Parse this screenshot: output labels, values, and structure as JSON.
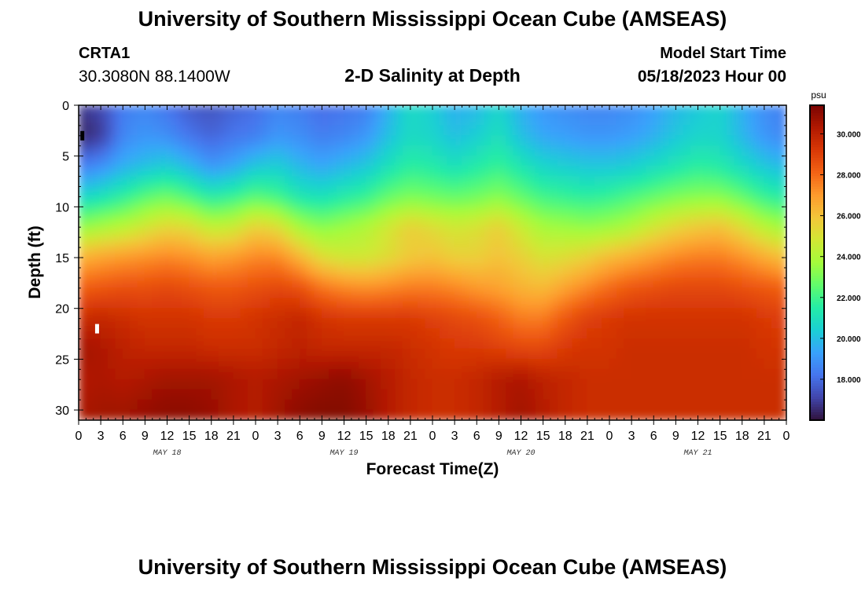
{
  "header": {
    "title": "University of Southern Mississippi Ocean Cube (AMSEAS)",
    "station_id": "CRTA1",
    "station_coords": "30.3080N  88.1400W",
    "chart_title": "2-D Salinity at Depth",
    "model_start_label": "Model Start Time",
    "model_start_value": "05/18/2023 Hour 00"
  },
  "footer": {
    "title": "University of Southern Mississippi Ocean Cube (AMSEAS)"
  },
  "colors": {
    "colormap": [
      "#30123b",
      "#4145ab",
      "#4675ed",
      "#39a2fc",
      "#1bcfd4",
      "#24eca6",
      "#61fc6c",
      "#a4fc3b",
      "#d1e834",
      "#f3c63a",
      "#fe9b2d",
      "#f36315",
      "#d93806",
      "#b11901",
      "#7a0402"
    ],
    "frame": "#000000"
  },
  "chart_data": {
    "type": "heatmap",
    "title": "2-D Salinity at Depth",
    "xlabel": "Forecast Time(Z)",
    "ylabel": "Depth (ft)",
    "x_unit": "hours since 05/18/2023 00Z",
    "xlim": [
      0,
      96
    ],
    "ylim": [
      0,
      31
    ],
    "x_tick_values": [
      0,
      3,
      6,
      9,
      12,
      15,
      18,
      21,
      24,
      27,
      30,
      33,
      36,
      39,
      42,
      45,
      48,
      51,
      54,
      57,
      60,
      63,
      66,
      69,
      72,
      75,
      78,
      81,
      84,
      87,
      90,
      93,
      96
    ],
    "x_tick_labels": [
      "0",
      "3",
      "6",
      "9",
      "12",
      "15",
      "18",
      "21",
      "0",
      "3",
      "6",
      "9",
      "12",
      "15",
      "18",
      "21",
      "0",
      "3",
      "6",
      "9",
      "12",
      "15",
      "18",
      "21",
      "0",
      "3",
      "6",
      "9",
      "12",
      "15",
      "18",
      "21",
      "0"
    ],
    "day_labels": [
      {
        "text": "MAY 18",
        "hour": 12
      },
      {
        "text": "MAY 19",
        "hour": 36
      },
      {
        "text": "MAY 20",
        "hour": 60
      },
      {
        "text": "MAY 21",
        "hour": 84
      }
    ],
    "y_tick_values": [
      0,
      5,
      10,
      15,
      20,
      25,
      30
    ],
    "y_tick_labels": [
      "0",
      "5",
      "10",
      "15",
      "20",
      "25",
      "30"
    ],
    "depth_levels_ft": [
      0,
      3,
      6,
      9,
      12,
      15,
      18,
      21,
      24,
      27,
      30,
      31
    ],
    "time_hours": [
      0,
      3,
      6,
      9,
      12,
      15,
      18,
      21,
      24,
      27,
      30,
      33,
      36,
      39,
      42,
      45,
      48,
      51,
      54,
      57,
      60,
      63,
      66,
      69,
      72,
      75,
      78,
      81,
      84,
      87,
      90,
      93,
      96
    ],
    "salinity_psu": [
      [
        16.8,
        17.2,
        18.4,
        18.6,
        18.2,
        17.6,
        17.4,
        17.8,
        18.0,
        18.6,
        18.4,
        18.0,
        18.2,
        18.4,
        19.6,
        20.8,
        20.4,
        19.6,
        19.8,
        20.6,
        19.6,
        19.0,
        18.8,
        18.6,
        18.6,
        18.8,
        19.2,
        19.8,
        20.2,
        20.6,
        19.6,
        18.8,
        18.4
      ],
      [
        16.4,
        16.8,
        18.6,
        19.0,
        18.8,
        18.2,
        17.8,
        18.2,
        18.4,
        19.0,
        18.8,
        18.4,
        18.6,
        19.0,
        20.0,
        20.8,
        20.6,
        20.0,
        20.4,
        21.0,
        20.0,
        19.4,
        19.2,
        19.0,
        19.0,
        19.2,
        19.6,
        20.2,
        20.6,
        20.6,
        19.8,
        19.0,
        18.6
      ],
      [
        18.4,
        18.8,
        19.6,
        20.0,
        20.4,
        19.8,
        19.0,
        19.4,
        20.2,
        20.4,
        19.8,
        19.4,
        19.8,
        20.2,
        21.0,
        21.6,
        21.4,
        21.0,
        21.4,
        21.8,
        21.2,
        20.6,
        20.4,
        20.2,
        20.2,
        20.4,
        20.8,
        21.2,
        21.6,
        21.4,
        20.8,
        20.2,
        19.8
      ],
      [
        20.6,
        21.0,
        21.6,
        22.4,
        22.8,
        22.2,
        21.4,
        21.8,
        22.4,
        22.0,
        21.2,
        21.0,
        21.4,
        21.8,
        22.6,
        23.0,
        22.8,
        22.6,
        22.8,
        23.2,
        22.6,
        22.0,
        21.8,
        21.6,
        21.8,
        22.2,
        22.6,
        23.0,
        23.2,
        23.2,
        22.6,
        21.8,
        21.4
      ],
      [
        23.4,
        23.8,
        24.2,
        24.8,
        25.4,
        25.2,
        24.4,
        24.6,
        25.6,
        25.2,
        23.8,
        23.2,
        23.6,
        24.0,
        24.8,
        25.6,
        25.2,
        24.8,
        25.0,
        25.6,
        24.6,
        23.8,
        23.6,
        23.4,
        23.6,
        24.0,
        24.8,
        25.4,
        25.8,
        26.0,
        25.2,
        24.2,
        23.6
      ],
      [
        26.4,
        26.8,
        27.0,
        27.2,
        27.4,
        27.2,
        26.8,
        27.0,
        27.4,
        27.4,
        26.4,
        25.2,
        24.8,
        24.8,
        25.2,
        25.8,
        26.0,
        25.6,
        25.6,
        26.0,
        25.6,
        25.0,
        25.2,
        25.6,
        26.2,
        26.6,
        27.0,
        27.4,
        27.6,
        27.6,
        27.2,
        26.6,
        26.0
      ],
      [
        28.2,
        28.4,
        28.6,
        28.6,
        28.8,
        28.6,
        28.4,
        28.4,
        28.6,
        28.8,
        28.6,
        27.8,
        27.4,
        27.2,
        27.4,
        27.6,
        27.6,
        27.4,
        27.0,
        26.8,
        26.4,
        26.2,
        26.8,
        27.4,
        28.0,
        28.4,
        28.6,
        28.8,
        28.8,
        28.8,
        28.6,
        28.4,
        28.2
      ],
      [
        29.6,
        29.8,
        29.6,
        29.4,
        29.4,
        29.4,
        29.2,
        29.2,
        29.4,
        29.6,
        29.8,
        29.4,
        29.2,
        29.2,
        29.2,
        29.2,
        29.0,
        28.8,
        28.6,
        28.2,
        27.6,
        27.6,
        28.4,
        29.0,
        29.2,
        29.4,
        29.4,
        29.4,
        29.4,
        29.4,
        29.4,
        29.2,
        29.0
      ],
      [
        30.6,
        30.4,
        30.0,
        29.8,
        29.8,
        29.8,
        29.6,
        29.6,
        29.6,
        29.8,
        30.0,
        29.8,
        29.8,
        29.8,
        29.8,
        29.6,
        29.4,
        29.2,
        29.2,
        29.0,
        28.8,
        28.8,
        29.2,
        29.4,
        29.4,
        29.6,
        29.6,
        29.6,
        29.6,
        29.6,
        29.6,
        29.4,
        29.4
      ],
      [
        30.2,
        30.4,
        30.2,
        30.4,
        30.6,
        30.6,
        30.6,
        30.4,
        30.2,
        30.4,
        30.6,
        30.8,
        31.0,
        30.6,
        30.2,
        29.8,
        29.6,
        29.6,
        29.8,
        30.2,
        30.4,
        30.0,
        29.8,
        29.6,
        29.6,
        29.6,
        29.6,
        29.6,
        29.6,
        29.6,
        29.6,
        29.6,
        29.6
      ],
      [
        30.4,
        30.6,
        30.6,
        30.8,
        31.0,
        31.0,
        30.8,
        30.4,
        30.2,
        30.6,
        31.0,
        31.2,
        31.2,
        30.8,
        30.2,
        29.8,
        29.6,
        29.6,
        29.8,
        30.2,
        30.6,
        30.2,
        29.8,
        29.6,
        29.6,
        29.6,
        29.6,
        29.6,
        29.6,
        29.6,
        29.6,
        29.6,
        29.6
      ],
      [
        30.4,
        30.6,
        30.6,
        30.8,
        31.0,
        31.0,
        30.8,
        30.4,
        30.2,
        30.6,
        31.0,
        31.2,
        31.2,
        30.8,
        30.2,
        29.8,
        29.6,
        29.6,
        29.8,
        30.2,
        30.6,
        30.2,
        29.8,
        29.6,
        29.6,
        29.6,
        29.6,
        29.6,
        29.6,
        29.6,
        29.6,
        29.6,
        29.6
      ]
    ],
    "vmin": 16.0,
    "vmax": 31.4,
    "colorbar": {
      "unit": "psu",
      "tick_values": [
        18,
        20,
        22,
        24,
        26,
        28,
        30
      ],
      "tick_labels": [
        "18.000",
        "20.000",
        "22.000",
        "24.000",
        "26.000",
        "28.000",
        "30.000"
      ]
    },
    "markers": [
      {
        "name": "black-marker",
        "hour": 0.5,
        "depth": 3.0,
        "color": "#000000"
      },
      {
        "name": "white-marker",
        "hour": 2.5,
        "depth": 22.0,
        "color": "#ffffff"
      }
    ]
  }
}
